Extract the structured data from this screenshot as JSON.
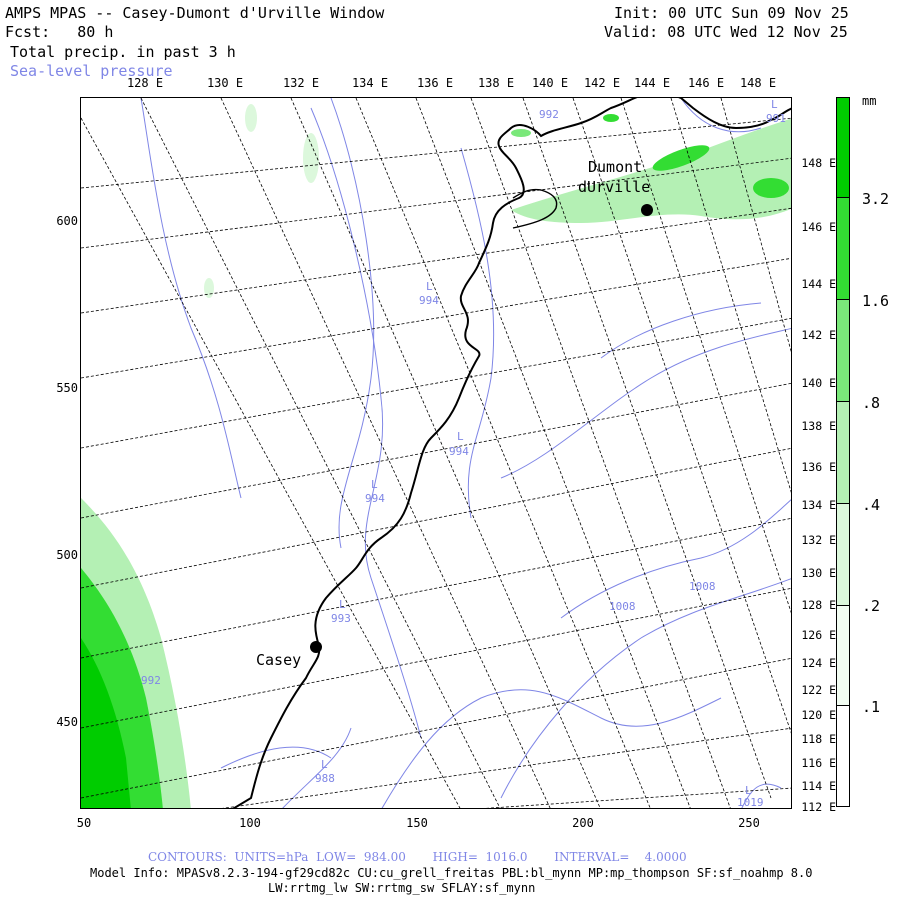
{
  "header": {
    "title": "AMPS MPAS -- Casey-Dumont d'Urville Window",
    "fcst": "Fcst:   80 h",
    "field": "Total precip. in past 3 h",
    "overlay": "Sea-level pressure",
    "init": "Init: 00 UTC Sun 09 Nov 25",
    "valid": "Valid: 08 UTC Wed 12 Nov 25"
  },
  "top_lon_labels": [
    "128 E",
    "130 E",
    "132 E",
    "134 E",
    "136 E",
    "138 E",
    "140 E",
    "142 E",
    "144 E",
    "146 E",
    "148 E"
  ],
  "left_labels": [
    "600",
    "550",
    "500",
    "450"
  ],
  "bottom_labels": [
    "50",
    "100",
    "150",
    "200",
    "250"
  ],
  "right_lon_labels": [
    "148 E",
    "146 E",
    "144 E",
    "142 E",
    "140 E",
    "138 E",
    "136 E",
    "134 E",
    "132 E",
    "130 E",
    "128 E",
    "126 E",
    "124 E",
    "122 E",
    "120 E",
    "118 E",
    "116 E",
    "114 E",
    "112 E"
  ],
  "colorbar": {
    "unit": "mm",
    "labels": [
      "3.2",
      "1.6",
      ".8",
      ".4",
      ".2",
      ".1"
    ],
    "colors": [
      "#00cc00",
      "#33dd33",
      "#7ae87a",
      "#b4f0b4",
      "#dcf8dc",
      "#f2fdf2"
    ]
  },
  "stations": [
    {
      "name_line1": "Dumont",
      "name_line2": "dUrville"
    },
    {
      "name_line1": "Casey"
    }
  ],
  "pressure_labels": {
    "l_marker": "L",
    "p992a": "992",
    "p991": "991",
    "p994a": "994",
    "p994b": "994",
    "p994c": "994",
    "p993": "993",
    "p988": "988",
    "p992b": "992",
    "p1008a": "1008",
    "p1008b": "1008",
    "p1019": "1019"
  },
  "footer": {
    "contours": "CONTOURS:  UNITS=hPa  LOW=  984.00       HIGH=  1016.0       INTERVAL=    4.0000",
    "model_info": "Model Info: MPASv8.2.3-194-gf29cd82c CU:cu_grell_freitas PBL:bl_mynn MP:mp_thompson SF:sf_noahmp 8.0",
    "model_info2": "LW:rrtmg_lw SW:rrtmg_sw SFLAY:sf_mynn"
  },
  "colors": {
    "contour": "#7f86e6",
    "precip_dark": "#00cc00",
    "precip_light": "#b4f0b4"
  }
}
